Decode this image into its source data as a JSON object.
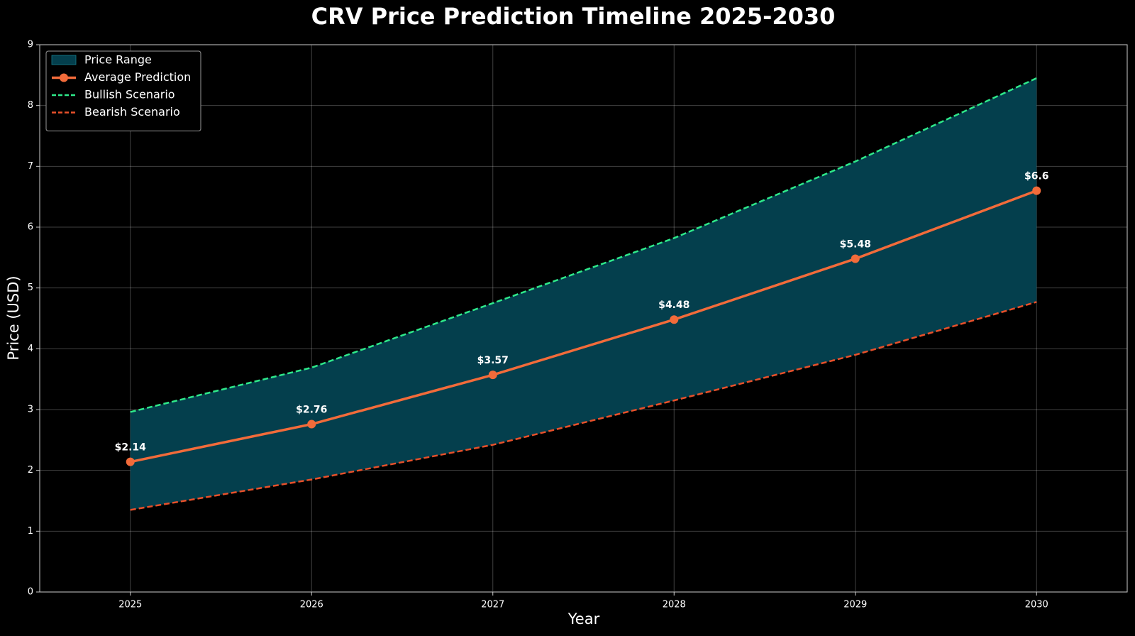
{
  "chart_data": {
    "type": "line",
    "title": "CRV Price Prediction Timeline 2025-2030",
    "xlabel": "Year",
    "ylabel": "Price (USD)",
    "x": [
      2025,
      2026,
      2027,
      2028,
      2029,
      2030
    ],
    "xlim": [
      2024.5,
      2030.5
    ],
    "xticks": [
      2025,
      2026,
      2027,
      2028,
      2029,
      2030
    ],
    "ylim": [
      0,
      9
    ],
    "yticks": [
      0,
      1,
      2,
      3,
      4,
      5,
      6,
      7,
      8,
      9
    ],
    "grid": true,
    "legend": "upper left",
    "range": {
      "name": "Price Range",
      "color": "#043f4d"
    },
    "series": [
      {
        "name": "Average Prediction",
        "color": "#f26b3a",
        "style": "solid",
        "markers": true,
        "values": [
          2.14,
          2.76,
          3.57,
          4.48,
          5.48,
          6.6
        ],
        "value_labels": [
          "$2.14",
          "$2.76",
          "$3.57",
          "$4.48",
          "$5.48",
          "$6.6"
        ]
      },
      {
        "name": "Bullish Scenario",
        "color": "#2ee88a",
        "style": "dashed",
        "values": [
          2.96,
          3.69,
          4.75,
          5.82,
          7.08,
          8.45
        ]
      },
      {
        "name": "Bearish Scenario",
        "color": "#e8502a",
        "style": "dashed",
        "values": [
          1.35,
          1.85,
          2.42,
          3.15,
          3.9,
          4.77
        ]
      }
    ]
  }
}
